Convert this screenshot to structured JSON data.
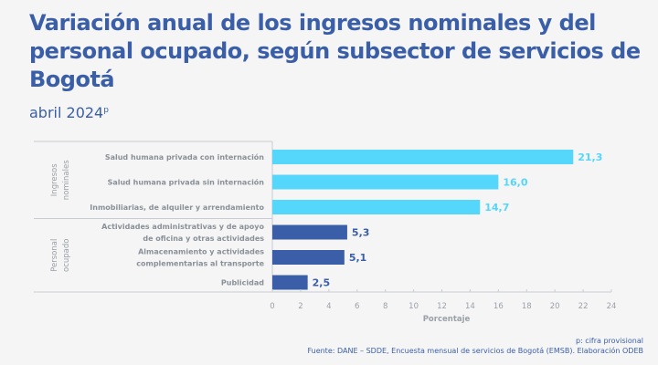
{
  "header": {
    "title": "Variación anual de los ingresos nominales y del personal ocupado, según subsector de servicios de Bogotá",
    "subtitle": "abril 2024",
    "subtitle_sup": "p"
  },
  "footer": {
    "note": "p: cifra provisional",
    "source": "Fuente: DANE – SDDE, Encuesta mensual de servicios de Bogotá (EMSB). Elaboración ODEB"
  },
  "chart_data": {
    "type": "bar",
    "orientation": "horizontal",
    "title": "Variación anual de los ingresos nominales y del personal ocupado, según subsector de servicios de Bogotá",
    "subtitle": "abril 2024p",
    "xlabel": "Porcentaje",
    "ylabel": "",
    "xlim": [
      0,
      24
    ],
    "xticks": [
      0,
      2,
      4,
      6,
      8,
      10,
      12,
      14,
      16,
      18,
      20,
      22,
      24
    ],
    "groups": [
      {
        "name": "Ingresos nominales",
        "label_lines": [
          "Ingresos",
          "nominales"
        ],
        "color": "#55d6fb",
        "categories": [
          {
            "label": [
              "Salud humana privada con internación"
            ],
            "value": 21.3,
            "display": "21,3"
          },
          {
            "label": [
              "Salud humana privada sin internación"
            ],
            "value": 16.0,
            "display": "16,0"
          },
          {
            "label": [
              "Inmobiliarias,  de alquiler y arrendamiento"
            ],
            "value": 14.7,
            "display": "14,7"
          }
        ]
      },
      {
        "name": "Personal ocupado",
        "label_lines": [
          "Personal",
          "ocupado"
        ],
        "color": "#3a5fa8",
        "categories": [
          {
            "label": [
              "Actividades administrativas y de apoyo",
              "de oficina y otras actividades"
            ],
            "value": 5.3,
            "display": "5,3"
          },
          {
            "label": [
              "Almacenamiento y actividades",
              "complementarias al transporte"
            ],
            "value": 5.1,
            "display": "5,1"
          },
          {
            "label": [
              "Publicidad"
            ],
            "value": 2.5,
            "display": "2,5"
          }
        ]
      }
    ],
    "grid": false,
    "legend": "none"
  }
}
